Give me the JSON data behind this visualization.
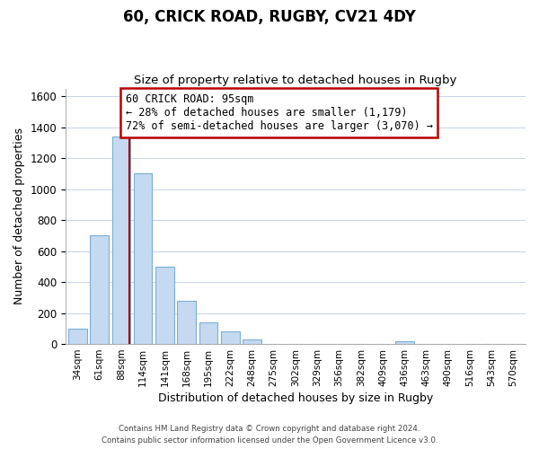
{
  "title": "60, CRICK ROAD, RUGBY, CV21 4DY",
  "subtitle": "Size of property relative to detached houses in Rugby",
  "xlabel": "Distribution of detached houses by size in Rugby",
  "ylabel": "Number of detached properties",
  "bin_labels": [
    "34sqm",
    "61sqm",
    "88sqm",
    "114sqm",
    "141sqm",
    "168sqm",
    "195sqm",
    "222sqm",
    "248sqm",
    "275sqm",
    "302sqm",
    "329sqm",
    "356sqm",
    "382sqm",
    "409sqm",
    "436sqm",
    "463sqm",
    "490sqm",
    "516sqm",
    "543sqm",
    "570sqm"
  ],
  "bar_heights": [
    100,
    700,
    1340,
    1100,
    500,
    280,
    140,
    80,
    30,
    0,
    0,
    0,
    0,
    0,
    0,
    15,
    0,
    0,
    0,
    0,
    0
  ],
  "bar_color": "#c5d9f0",
  "bar_edge_color": "#7bafd4",
  "property_line_bin": 2,
  "property_line_color": "#aa0000",
  "ylim": [
    0,
    1650
  ],
  "yticks": [
    0,
    200,
    400,
    600,
    800,
    1000,
    1200,
    1400,
    1600
  ],
  "annotation_bold": "60 CRICK ROAD: 95sqm",
  "annotation_line1": "← 28% of detached houses are smaller (1,179)",
  "annotation_line2": "72% of semi-detached houses are larger (3,070) →",
  "annotation_box_color": "#ffffff",
  "annotation_box_edge_color": "#bb0000",
  "footer_line1": "Contains HM Land Registry data © Crown copyright and database right 2024.",
  "footer_line2": "Contains public sector information licensed under the Open Government Licence v3.0.",
  "background_color": "#ffffff",
  "grid_color": "#c8d4e8"
}
